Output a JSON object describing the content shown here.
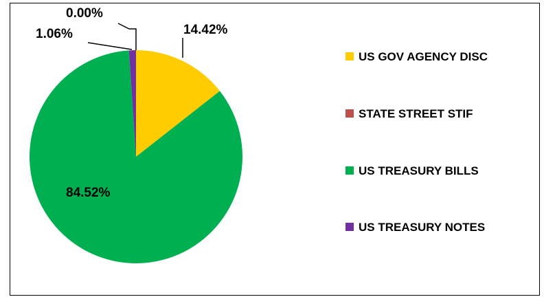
{
  "chart_data": {
    "type": "pie",
    "title": "",
    "legend_position": "right",
    "slices": [
      {
        "label": "US GOV AGENCY DISC",
        "value": 14.42,
        "value_label": "14.42%",
        "color": "#FFCC00"
      },
      {
        "label": "STATE STREET STIF",
        "value": 0.0,
        "value_label": "0.00%",
        "color": "#C0504D"
      },
      {
        "label": "US TREASURY BILLS",
        "value": 84.52,
        "value_label": "84.52%",
        "color": "#00B050"
      },
      {
        "label": "US TREASURY NOTES",
        "value": 1.06,
        "value_label": "1.06%",
        "color": "#7030A0"
      }
    ]
  }
}
